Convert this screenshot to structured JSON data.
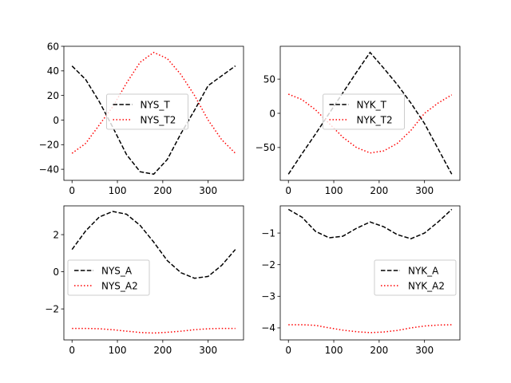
{
  "chart_data": [
    {
      "type": "line",
      "xlim": [
        -18,
        378
      ],
      "ylim": [
        -49,
        60
      ],
      "xticks": [
        0,
        100,
        200,
        300
      ],
      "yticks": [
        -40,
        -20,
        0,
        20,
        40,
        60
      ],
      "legend_position": "center",
      "series": [
        {
          "name": "NYS_T",
          "color": "#000000",
          "style": "dashed",
          "x": [
            0,
            30,
            60,
            90,
            120,
            150,
            180,
            210,
            240,
            270,
            300,
            330,
            360
          ],
          "y": [
            44,
            33,
            15,
            -6,
            -28,
            -42,
            -44,
            -32,
            -11,
            8,
            28,
            36,
            44
          ]
        },
        {
          "name": "NYS_T2",
          "color": "#ff0000",
          "style": "dotted",
          "x": [
            0,
            30,
            60,
            90,
            120,
            150,
            180,
            210,
            240,
            270,
            300,
            330,
            360
          ],
          "y": [
            -27,
            -19,
            -4,
            11,
            30,
            47,
            55,
            50,
            37,
            20,
            0,
            -16,
            -27
          ]
        }
      ]
    },
    {
      "type": "line",
      "xlim": [
        -18,
        378
      ],
      "ylim": [
        -98,
        98
      ],
      "xticks": [
        0,
        100,
        200,
        300
      ],
      "yticks": [
        -50,
        0,
        50
      ],
      "legend_position": "center",
      "series": [
        {
          "name": "NYK_T",
          "color": "#000000",
          "style": "dashed",
          "x": [
            0,
            30,
            60,
            90,
            120,
            150,
            180,
            210,
            240,
            270,
            300,
            330,
            360
          ],
          "y": [
            -89,
            -59,
            -30,
            0,
            30,
            60,
            89,
            66,
            42,
            15,
            -15,
            -52,
            -89
          ]
        },
        {
          "name": "NYK_T2",
          "color": "#ff0000",
          "style": "dotted",
          "x": [
            0,
            30,
            60,
            90,
            120,
            150,
            180,
            210,
            240,
            270,
            300,
            330,
            360
          ],
          "y": [
            28,
            20,
            5,
            -15,
            -35,
            -50,
            -58,
            -55,
            -44,
            -25,
            0,
            15,
            27
          ]
        }
      ]
    },
    {
      "type": "line",
      "xlim": [
        -18,
        378
      ],
      "ylim": [
        -3.67,
        3.55
      ],
      "xticks": [
        0,
        100,
        200,
        300
      ],
      "yticks": [
        -2,
        0,
        2
      ],
      "legend_position": "center left",
      "series": [
        {
          "name": "NYS_A",
          "color": "#000000",
          "style": "dashed",
          "x": [
            0,
            30,
            60,
            90,
            120,
            150,
            180,
            210,
            240,
            270,
            300,
            330,
            360
          ],
          "y": [
            1.2,
            2.2,
            2.95,
            3.25,
            3.1,
            2.5,
            1.6,
            0.6,
            -0.05,
            -0.35,
            -0.25,
            0.35,
            1.2
          ]
        },
        {
          "name": "NYS_A2",
          "color": "#ff0000",
          "style": "dotted",
          "x": [
            0,
            30,
            60,
            90,
            120,
            150,
            180,
            210,
            240,
            270,
            300,
            330,
            360
          ],
          "y": [
            -3.05,
            -3.05,
            -3.07,
            -3.12,
            -3.2,
            -3.27,
            -3.3,
            -3.26,
            -3.2,
            -3.12,
            -3.07,
            -3.05,
            -3.05
          ]
        }
      ]
    },
    {
      "type": "line",
      "xlim": [
        -18,
        378
      ],
      "ylim": [
        -4.38,
        -0.14
      ],
      "xticks": [
        0,
        100,
        200,
        300
      ],
      "yticks": [
        -4,
        -3,
        -2,
        -1
      ],
      "legend_position": "center right",
      "series": [
        {
          "name": "NYK_A",
          "color": "#000000",
          "style": "dashed",
          "x": [
            0,
            30,
            60,
            90,
            120,
            150,
            180,
            210,
            240,
            270,
            300,
            330,
            360
          ],
          "y": [
            -0.25,
            -0.5,
            -0.95,
            -1.15,
            -1.1,
            -0.85,
            -0.65,
            -0.8,
            -1.05,
            -1.18,
            -1.0,
            -0.65,
            -0.25
          ]
        },
        {
          "name": "NYK_A2",
          "color": "#ff0000",
          "style": "dotted",
          "x": [
            0,
            30,
            60,
            90,
            120,
            150,
            180,
            210,
            240,
            270,
            300,
            330,
            360
          ],
          "y": [
            -3.9,
            -3.9,
            -3.92,
            -4.0,
            -4.07,
            -4.12,
            -4.15,
            -4.13,
            -4.08,
            -4.0,
            -3.94,
            -3.91,
            -3.9
          ]
        }
      ]
    }
  ]
}
